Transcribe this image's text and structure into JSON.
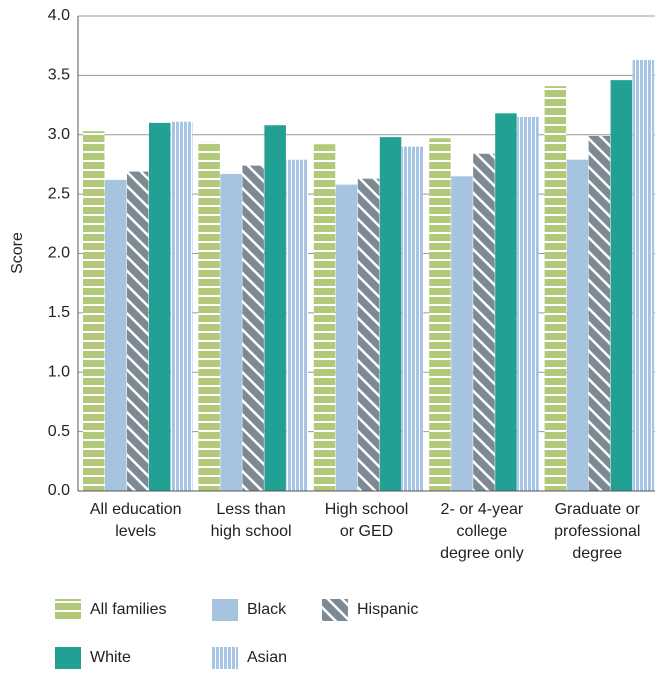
{
  "chart_data": {
    "type": "bar",
    "y_label": "Score",
    "categories": [
      [
        "All education",
        "levels"
      ],
      [
        "Less than",
        "high school"
      ],
      [
        "High school",
        "or GED"
      ],
      [
        "2- or 4-year",
        "college",
        "degree only"
      ],
      [
        "Graduate or",
        "professional",
        "degree"
      ]
    ],
    "series": [
      {
        "name": "All families",
        "color": "#b3c97a",
        "pattern": "horizontal",
        "values": [
          3.03,
          2.94,
          2.92,
          2.97,
          3.41
        ]
      },
      {
        "name": "Black",
        "color": "#a6c4e0",
        "pattern": "none",
        "values": [
          2.62,
          2.67,
          2.58,
          2.65,
          2.79
        ]
      },
      {
        "name": "Hispanic",
        "color": "#7d8a94",
        "pattern": "diagonal",
        "values": [
          2.69,
          2.74,
          2.63,
          2.84,
          2.99
        ]
      },
      {
        "name": "White",
        "color": "#22a094",
        "pattern": "none",
        "values": [
          3.1,
          3.08,
          2.98,
          3.18,
          3.46
        ]
      },
      {
        "name": "Asian",
        "color": "#a6c4e6",
        "pattern": "vertical",
        "values": [
          3.11,
          2.79,
          2.9,
          3.15,
          3.63
        ]
      }
    ],
    "ylim": [
      0,
      4
    ],
    "yticks": [
      {
        "value": 0,
        "label": "0.0"
      },
      0.5,
      {
        "value": 1,
        "label": "1.0"
      },
      1.5,
      {
        "value": 2,
        "label": "2.0"
      },
      2.5,
      {
        "value": 3,
        "label": "3.0"
      },
      3.5,
      {
        "value": 4,
        "label": "4.0"
      }
    ],
    "grid": true
  }
}
